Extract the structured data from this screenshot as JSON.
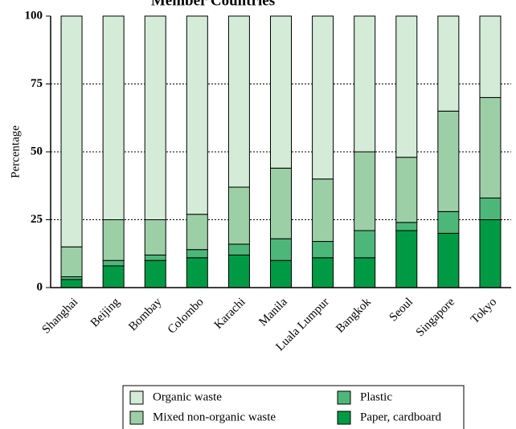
{
  "chart_data": {
    "type": "stacked_bar",
    "title": "Member Countries",
    "y_label": "Percentage",
    "categories": [
      "Shanghai",
      "Beijing",
      "Bombay",
      "Colombo",
      "Karachi",
      "Manila",
      "Luala Lumpur",
      "Bangkok",
      "Seoul",
      "Singapore",
      "Tokyo"
    ],
    "series": [
      {
        "name": "Paper, cardboard",
        "color": "#009a44",
        "values": [
          3,
          8,
          10,
          11,
          12,
          10,
          11,
          11,
          21,
          20,
          25
        ]
      },
      {
        "name": "Plastic",
        "color": "#4db77a",
        "values": [
          1,
          2,
          2,
          3,
          4,
          8,
          6,
          10,
          3,
          8,
          8
        ]
      },
      {
        "name": "Mixed non-organic waste",
        "color": "#9ccfa6",
        "values": [
          11,
          15,
          13,
          13,
          21,
          26,
          23,
          29,
          24,
          37,
          37
        ]
      },
      {
        "name": "Organic waste",
        "color": "#d4ecd7",
        "values": [
          85,
          75,
          75,
          73,
          63,
          56,
          60,
          50,
          52,
          35,
          30
        ]
      }
    ],
    "ylim": [
      0,
      100
    ],
    "yticks": [
      0,
      25,
      50,
      75,
      100
    ],
    "grid": true
  }
}
